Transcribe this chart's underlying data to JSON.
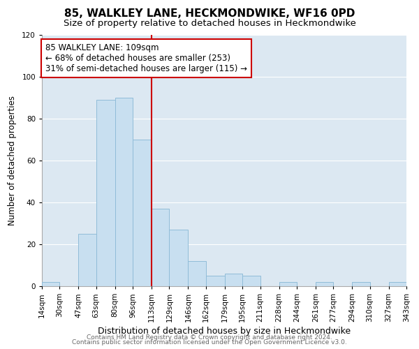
{
  "title": "85, WALKLEY LANE, HECKMONDWIKE, WF16 0PD",
  "subtitle": "Size of property relative to detached houses in Heckmondwike",
  "xlabel": "Distribution of detached houses by size in Heckmondwike",
  "ylabel": "Number of detached properties",
  "bin_edges": [
    14,
    30,
    47,
    63,
    80,
    96,
    113,
    129,
    146,
    162,
    179,
    195,
    211,
    228,
    244,
    261,
    277,
    294,
    310,
    327,
    343
  ],
  "bar_heights": [
    2,
    0,
    25,
    89,
    90,
    70,
    37,
    27,
    12,
    5,
    6,
    5,
    0,
    2,
    0,
    2,
    0,
    2,
    0,
    2
  ],
  "bar_color": "#c8dff0",
  "bar_edge_color": "#90bcd8",
  "vline_x": 113,
  "vline_color": "#cc0000",
  "annotation_text": "85 WALKLEY LANE: 109sqm\n← 68% of detached houses are smaller (253)\n31% of semi-detached houses are larger (115) →",
  "annotation_box_edge_color": "#cc0000",
  "annotation_box_face_color": "#ffffff",
  "ylim": [
    0,
    120
  ],
  "yticks": [
    0,
    20,
    40,
    60,
    80,
    100,
    120
  ],
  "footer_line1": "Contains HM Land Registry data © Crown copyright and database right 2024.",
  "footer_line2": "Contains public sector information licensed under the Open Government Licence v3.0.",
  "background_color": "#ffffff",
  "grid_color": "#dce8f2",
  "title_fontsize": 11,
  "subtitle_fontsize": 9.5,
  "xlabel_fontsize": 9,
  "ylabel_fontsize": 8.5,
  "tick_fontsize": 7.5,
  "annotation_fontsize": 8.5,
  "footer_fontsize": 6.5
}
